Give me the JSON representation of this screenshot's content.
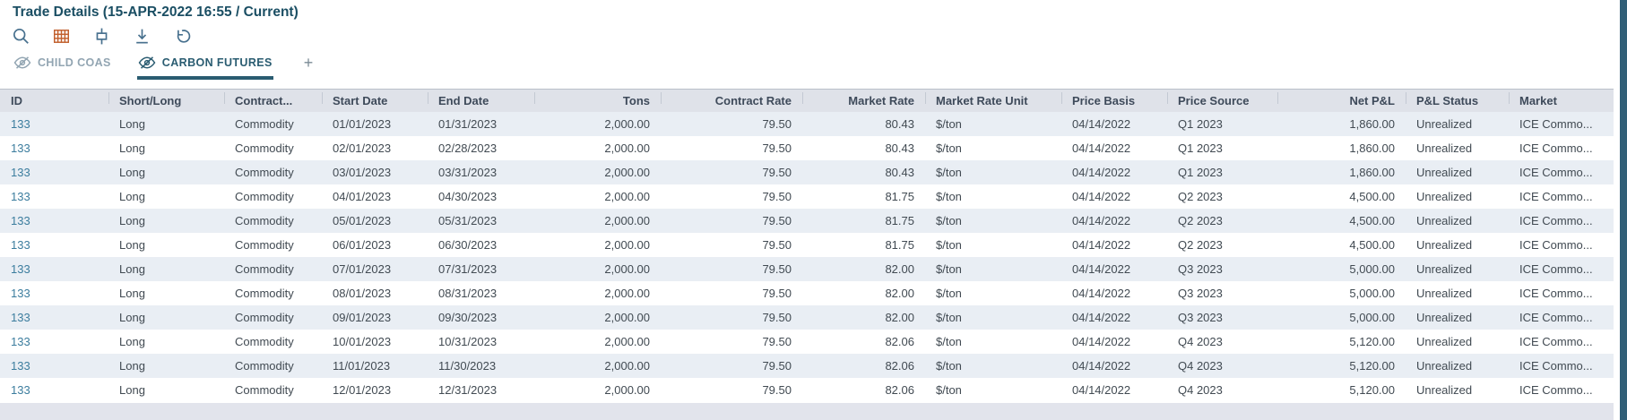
{
  "header": {
    "title": "Trade Details (15-APR-2022 16:55 / Current)"
  },
  "toolbar": {
    "buttons": [
      {
        "name": "search",
        "icon": "search-icon"
      },
      {
        "name": "table-grid",
        "icon": "table-grid-icon"
      },
      {
        "name": "fit-columns",
        "icon": "fit-columns-icon"
      },
      {
        "name": "download",
        "icon": "download-icon"
      },
      {
        "name": "undo",
        "icon": "undo-icon"
      }
    ]
  },
  "tabs": {
    "items": [
      {
        "label": "CHILD COAS",
        "icon": "eye-slash-icon",
        "active": false
      },
      {
        "label": "CARBON FUTURES",
        "icon": "eye-slash-icon",
        "active": true
      }
    ],
    "add_label": "+"
  },
  "table": {
    "columns": [
      {
        "label": "ID",
        "align": "left"
      },
      {
        "label": "Short/Long",
        "align": "left"
      },
      {
        "label": "Contract...",
        "align": "left"
      },
      {
        "label": "Start Date",
        "align": "left"
      },
      {
        "label": "End Date",
        "align": "left"
      },
      {
        "label": "Tons",
        "align": "right"
      },
      {
        "label": "Contract Rate",
        "align": "right"
      },
      {
        "label": "Market Rate",
        "align": "right"
      },
      {
        "label": "Market Rate Unit",
        "align": "left"
      },
      {
        "label": "Price Basis",
        "align": "left"
      },
      {
        "label": "Price Source",
        "align": "left"
      },
      {
        "label": "Net P&L",
        "align": "right"
      },
      {
        "label": "P&L Status",
        "align": "left"
      },
      {
        "label": "Market",
        "align": "left"
      }
    ],
    "rows": [
      [
        "133",
        "Long",
        "Commodity",
        "01/01/2023",
        "01/31/2023",
        "2,000.00",
        "79.50",
        "80.43",
        "$/ton",
        "04/14/2022",
        "Q1 2023",
        "1,860.00",
        "Unrealized",
        "ICE Commo..."
      ],
      [
        "133",
        "Long",
        "Commodity",
        "02/01/2023",
        "02/28/2023",
        "2,000.00",
        "79.50",
        "80.43",
        "$/ton",
        "04/14/2022",
        "Q1 2023",
        "1,860.00",
        "Unrealized",
        "ICE Commo..."
      ],
      [
        "133",
        "Long",
        "Commodity",
        "03/01/2023",
        "03/31/2023",
        "2,000.00",
        "79.50",
        "80.43",
        "$/ton",
        "04/14/2022",
        "Q1 2023",
        "1,860.00",
        "Unrealized",
        "ICE Commo..."
      ],
      [
        "133",
        "Long",
        "Commodity",
        "04/01/2023",
        "04/30/2023",
        "2,000.00",
        "79.50",
        "81.75",
        "$/ton",
        "04/14/2022",
        "Q2 2023",
        "4,500.00",
        "Unrealized",
        "ICE Commo..."
      ],
      [
        "133",
        "Long",
        "Commodity",
        "05/01/2023",
        "05/31/2023",
        "2,000.00",
        "79.50",
        "81.75",
        "$/ton",
        "04/14/2022",
        "Q2 2023",
        "4,500.00",
        "Unrealized",
        "ICE Commo..."
      ],
      [
        "133",
        "Long",
        "Commodity",
        "06/01/2023",
        "06/30/2023",
        "2,000.00",
        "79.50",
        "81.75",
        "$/ton",
        "04/14/2022",
        "Q2 2023",
        "4,500.00",
        "Unrealized",
        "ICE Commo..."
      ],
      [
        "133",
        "Long",
        "Commodity",
        "07/01/2023",
        "07/31/2023",
        "2,000.00",
        "79.50",
        "82.00",
        "$/ton",
        "04/14/2022",
        "Q3 2023",
        "5,000.00",
        "Unrealized",
        "ICE Commo..."
      ],
      [
        "133",
        "Long",
        "Commodity",
        "08/01/2023",
        "08/31/2023",
        "2,000.00",
        "79.50",
        "82.00",
        "$/ton",
        "04/14/2022",
        "Q3 2023",
        "5,000.00",
        "Unrealized",
        "ICE Commo..."
      ],
      [
        "133",
        "Long",
        "Commodity",
        "09/01/2023",
        "09/30/2023",
        "2,000.00",
        "79.50",
        "82.00",
        "$/ton",
        "04/14/2022",
        "Q3 2023",
        "5,000.00",
        "Unrealized",
        "ICE Commo..."
      ],
      [
        "133",
        "Long",
        "Commodity",
        "10/01/2023",
        "10/31/2023",
        "2,000.00",
        "79.50",
        "82.06",
        "$/ton",
        "04/14/2022",
        "Q4 2023",
        "5,120.00",
        "Unrealized",
        "ICE Commo..."
      ],
      [
        "133",
        "Long",
        "Commodity",
        "11/01/2023",
        "11/30/2023",
        "2,000.00",
        "79.50",
        "82.06",
        "$/ton",
        "04/14/2022",
        "Q4 2023",
        "5,120.00",
        "Unrealized",
        "ICE Commo..."
      ],
      [
        "133",
        "Long",
        "Commodity",
        "12/01/2023",
        "12/31/2023",
        "2,000.00",
        "79.50",
        "82.06",
        "$/ton",
        "04/14/2022",
        "Q4 2023",
        "5,120.00",
        "Unrealized",
        "ICE Commo..."
      ]
    ]
  },
  "colors": {
    "accent_teal": "#2a5c71",
    "title_text": "#1a4e63",
    "link_blue": "#3c7d9e",
    "icon_blue": "#47708e",
    "icon_orange": "#c2602e",
    "header_bg": "#dfe2e9",
    "row_alt_bg": "#e9eef4",
    "vertical_scrollbar": "#315f77",
    "horizontal_scrollbar_track": "#e2e4ec"
  }
}
